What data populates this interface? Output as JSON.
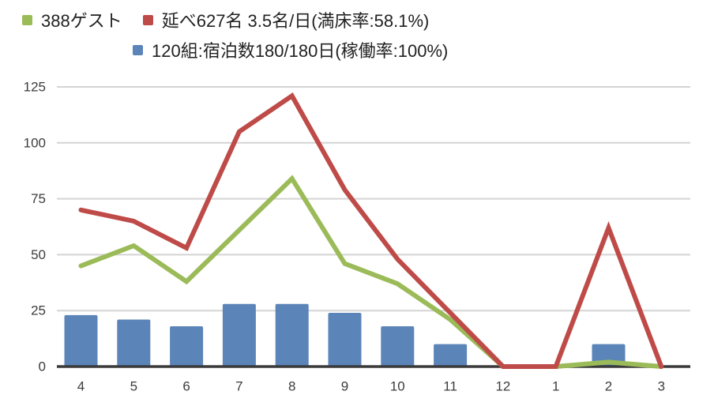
{
  "legend": {
    "row1": [
      {
        "label": "388ゲスト",
        "color": "#9BBB59"
      },
      {
        "label": "延べ627名 3.5名/日(満床率:58.1%)",
        "color": "#BE4B48"
      }
    ],
    "row2": [
      {
        "label": "120組:宿泊数180/180日(稼働率:100%)",
        "color": "#5B84B8"
      }
    ]
  },
  "chart_data": {
    "type": "combo",
    "title": "",
    "xlabel": "",
    "ylabel": "",
    "categories": [
      "4",
      "5",
      "6",
      "7",
      "8",
      "9",
      "10",
      "11",
      "12",
      "1",
      "2",
      "3"
    ],
    "series": [
      {
        "name": "388ゲスト",
        "type": "line",
        "color": "#9BBB59",
        "values": [
          45,
          54,
          38,
          61,
          84,
          46,
          37,
          21,
          0,
          0,
          2,
          0
        ]
      },
      {
        "name": "延べ627名 3.5名/日(満床率:58.1%)",
        "type": "line",
        "color": "#BE4B48",
        "values": [
          70,
          65,
          53,
          105,
          121,
          79,
          48,
          24,
          0,
          0,
          62,
          0
        ]
      },
      {
        "name": "120組:宿泊数180/180日(稼働率:100%)",
        "type": "bar",
        "color": "#5B84B8",
        "values": [
          23,
          21,
          18,
          28,
          28,
          24,
          18,
          10,
          0,
          0,
          10,
          0
        ]
      }
    ],
    "ylim": [
      0,
      125
    ],
    "yticks": [
      0,
      25,
      50,
      75,
      100,
      125
    ],
    "grid": true,
    "legend_position": "top"
  },
  "colors": {
    "gridline": "#D4D4D4",
    "axis_line": "#3A3A3A",
    "tick_text": "#3C3C3C"
  }
}
